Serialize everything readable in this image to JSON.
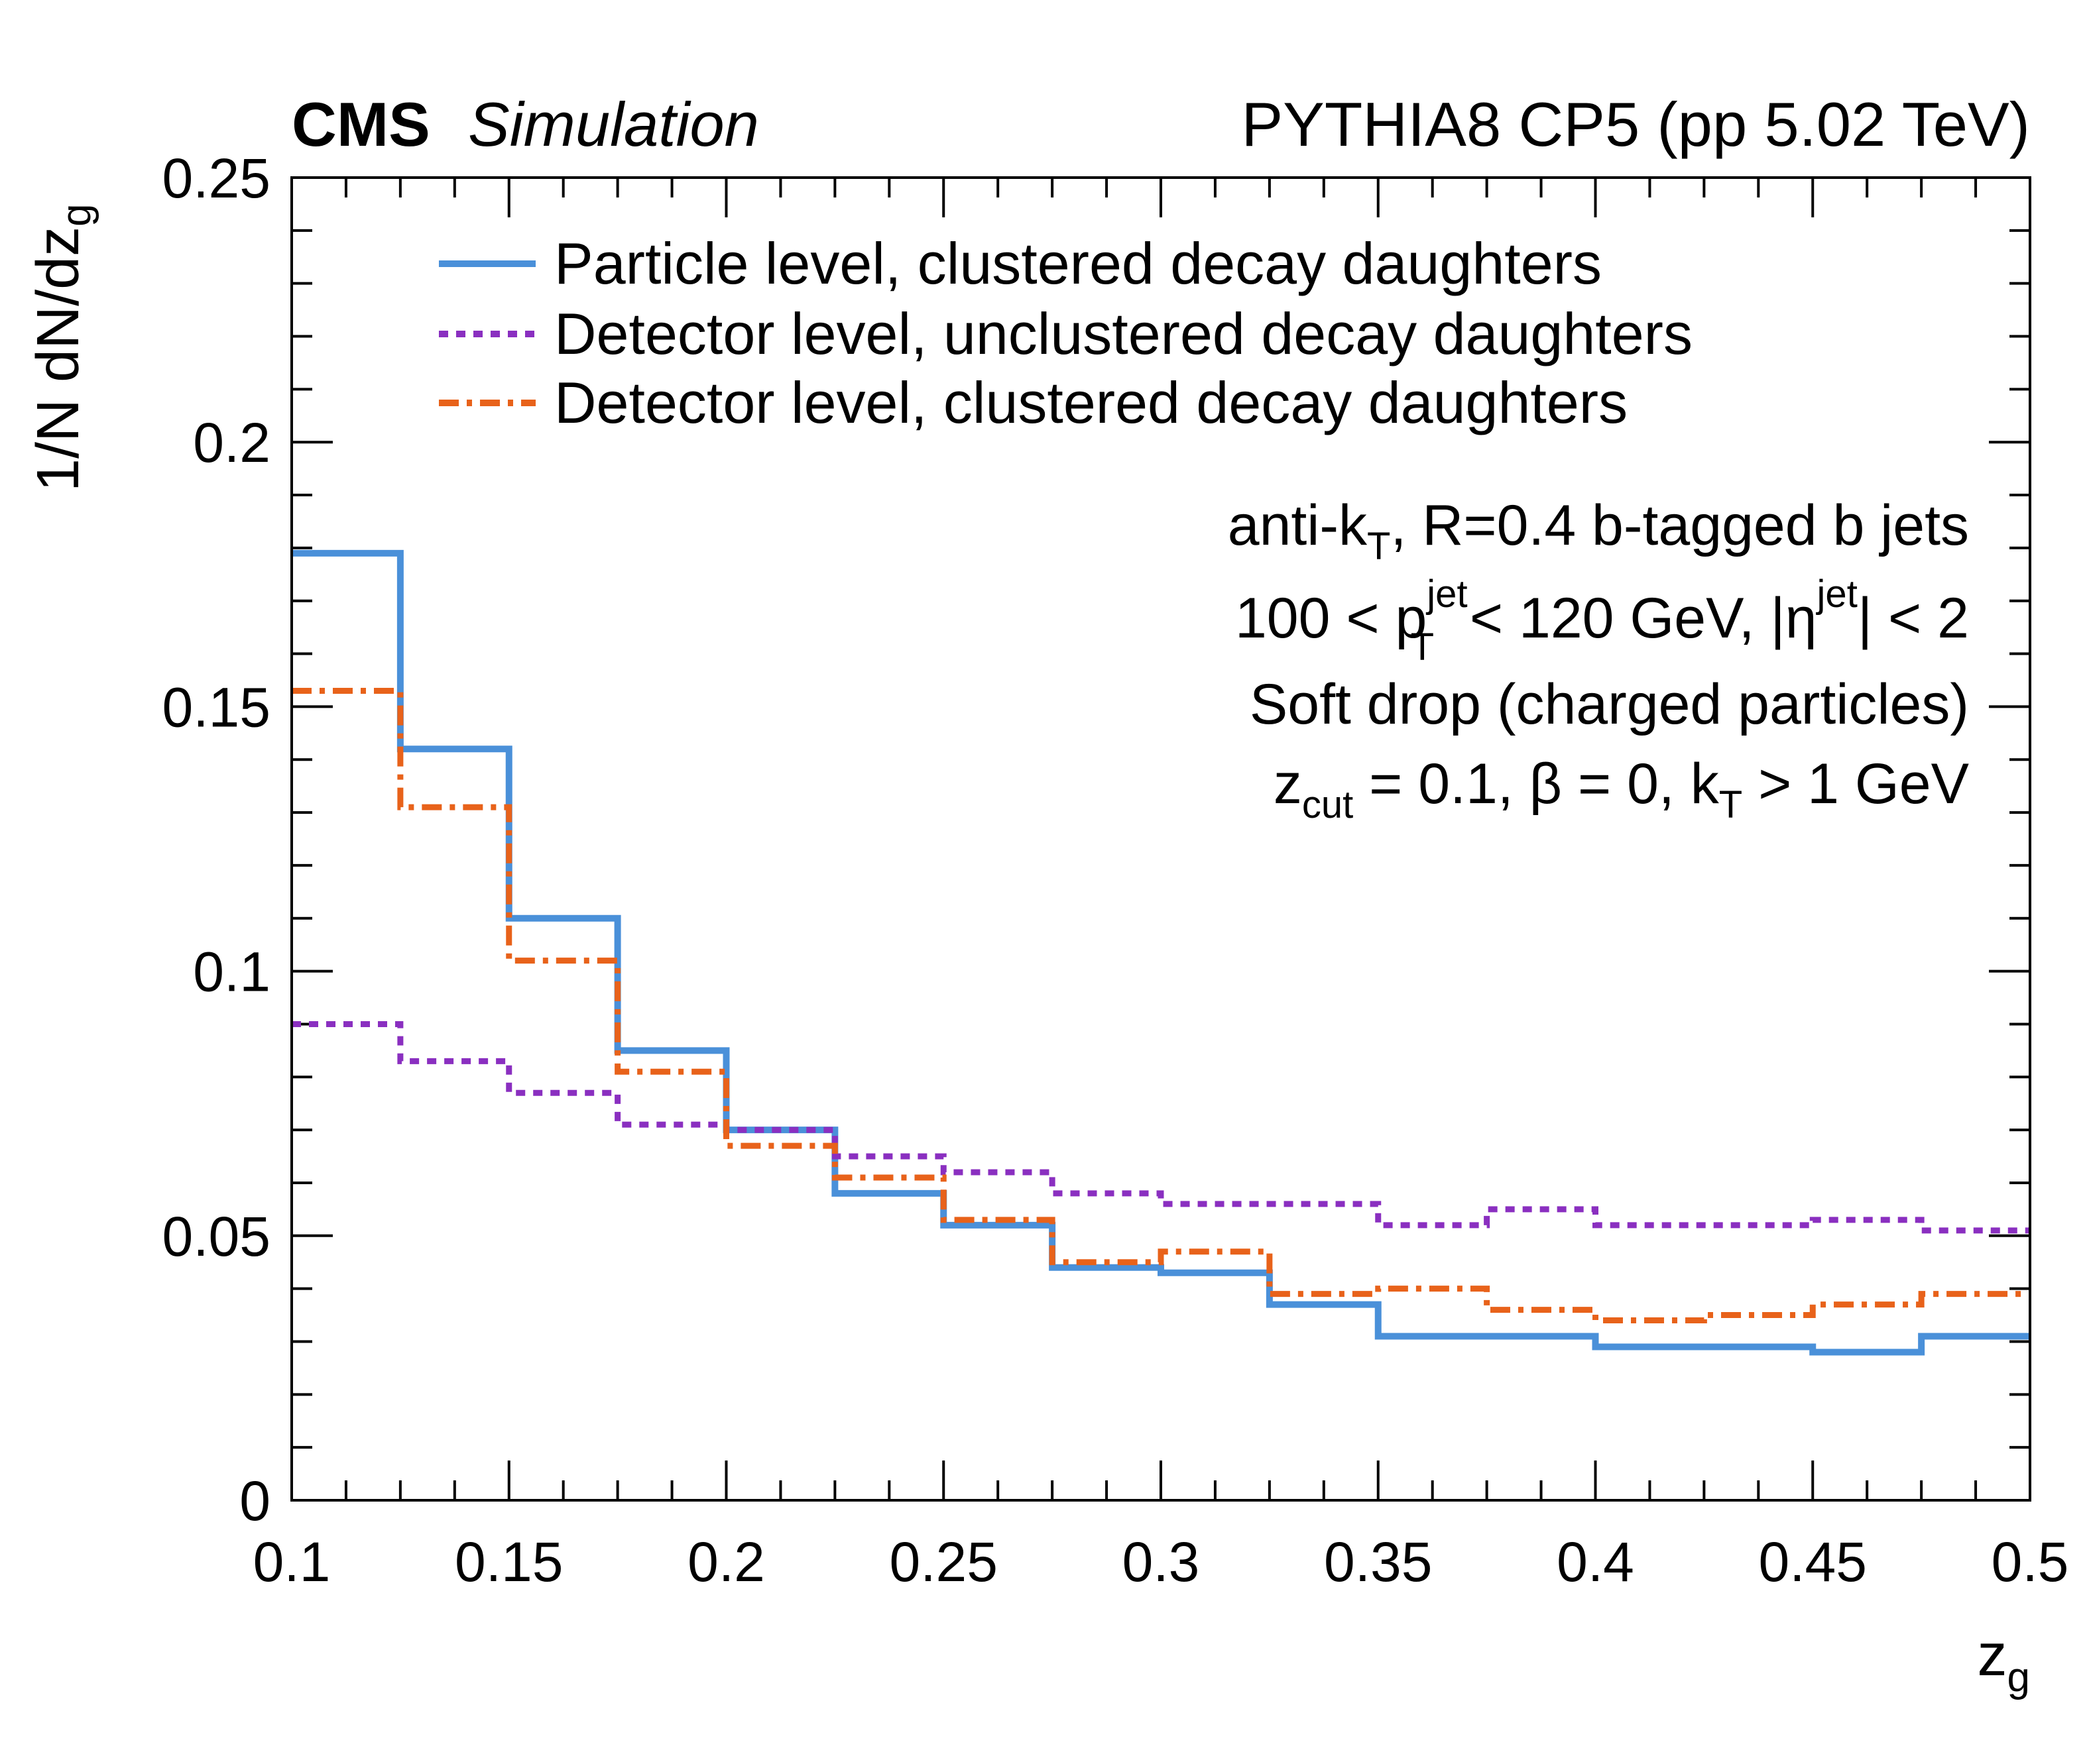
{
  "chart_data": {
    "type": "line",
    "style": "step-histogram",
    "header": {
      "cms": "CMS",
      "simulation": "Simulation",
      "right": "PYTHIA8 CP5 (pp 5.02 TeV)"
    },
    "xlabel": "z",
    "xlabel_sub": "g",
    "ylabel": "1/N dN/dz",
    "ylabel_sub": "g",
    "xlim": [
      0.1,
      0.5
    ],
    "ylim": [
      0,
      0.25
    ],
    "xticks": [
      {
        "value": 0.1,
        "label": "0.1"
      },
      {
        "value": 0.15,
        "label": "0.15"
      },
      {
        "value": 0.2,
        "label": "0.2"
      },
      {
        "value": 0.25,
        "label": "0.25"
      },
      {
        "value": 0.3,
        "label": "0.3"
      },
      {
        "value": 0.35,
        "label": "0.35"
      },
      {
        "value": 0.4,
        "label": "0.4"
      },
      {
        "value": 0.45,
        "label": "0.45"
      },
      {
        "value": 0.5,
        "label": "0.5"
      }
    ],
    "yticks": [
      {
        "value": 0,
        "label": "0"
      },
      {
        "value": 0.05,
        "label": "0.05"
      },
      {
        "value": 0.1,
        "label": "0.1"
      },
      {
        "value": 0.15,
        "label": "0.15"
      },
      {
        "value": 0.2,
        "label": "0.2"
      },
      {
        "value": 0.25,
        "label": "0.25"
      }
    ],
    "bin_edges": [
      0.1,
      0.125,
      0.15,
      0.175,
      0.2,
      0.225,
      0.25,
      0.275,
      0.3,
      0.325,
      0.35,
      0.375,
      0.4,
      0.425,
      0.45,
      0.475,
      0.5
    ],
    "series": [
      {
        "name": "Particle level, clustered decay daughters",
        "color": "#4a90d9",
        "dash": "solid",
        "values": [
          0.179,
          0.142,
          0.11,
          0.085,
          0.07,
          0.058,
          0.052,
          0.044,
          0.043,
          0.037,
          0.031,
          0.031,
          0.029,
          0.029,
          0.028,
          0.031
        ]
      },
      {
        "name": "Detector level, unclustered decay daughters",
        "color": "#8a2fc0",
        "dash": "dotted",
        "values": [
          0.09,
          0.083,
          0.077,
          0.071,
          0.07,
          0.065,
          0.062,
          0.058,
          0.056,
          0.056,
          0.052,
          0.055,
          0.052,
          0.052,
          0.053,
          0.051
        ]
      },
      {
        "name": "Detector level, clustered decay daughters",
        "color": "#e8621a",
        "dash": "dashdot",
        "values": [
          0.153,
          0.131,
          0.102,
          0.081,
          0.067,
          0.061,
          0.053,
          0.045,
          0.047,
          0.039,
          0.04,
          0.036,
          0.034,
          0.035,
          0.037,
          0.039
        ]
      }
    ],
    "legend_position": "top",
    "annotations": {
      "line1": {
        "pre": "anti-k",
        "sub": "T",
        "post": ", R=0.4 b-tagged b jets"
      },
      "line2": {
        "a": "100 < p",
        "sup1": "jet",
        "sub1": "T",
        "b": " < 120 GeV, |η",
        "sup2": "jet",
        "c": "| < 2"
      },
      "line3": "Soft drop (charged particles)",
      "line4": {
        "a": "z",
        "sub1": "cut",
        "b": " = 0.1, β = 0, k",
        "sub2": "T",
        "c": " > 1 GeV"
      }
    }
  }
}
